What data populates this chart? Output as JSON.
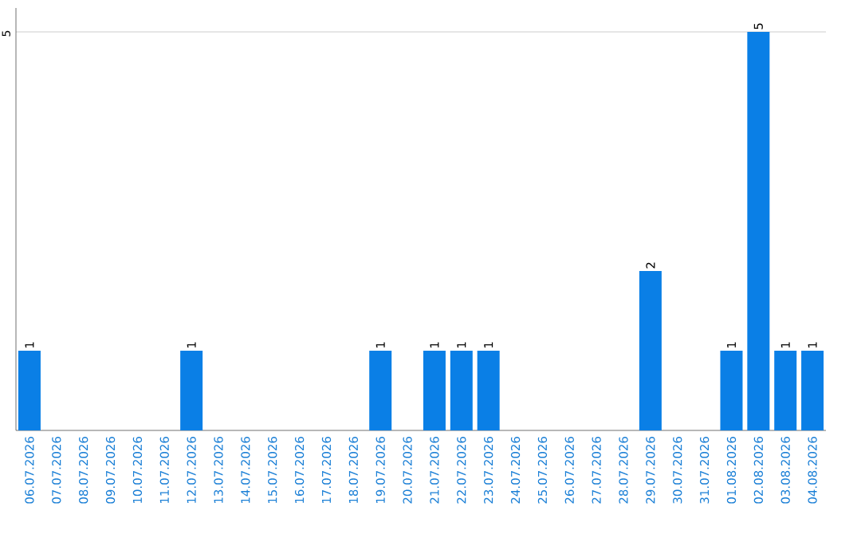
{
  "chart_data": {
    "type": "bar",
    "categories": [
      "06.07.2026",
      "07.07.2026",
      "08.07.2026",
      "09.07.2026",
      "10.07.2026",
      "11.07.2026",
      "12.07.2026",
      "13.07.2026",
      "14.07.2026",
      "15.07.2026",
      "16.07.2026",
      "17.07.2026",
      "18.07.2026",
      "19.07.2026",
      "20.07.2026",
      "21.07.2026",
      "22.07.2026",
      "23.07.2026",
      "24.07.2026",
      "25.07.2026",
      "26.07.2026",
      "27.07.2026",
      "28.07.2026",
      "29.07.2026",
      "30.07.2026",
      "31.07.2026",
      "01.08.2026",
      "02.08.2026",
      "03.08.2026",
      "04.08.2026"
    ],
    "values": [
      1,
      0,
      0,
      0,
      0,
      0,
      1,
      0,
      0,
      0,
      0,
      0,
      0,
      1,
      0,
      1,
      1,
      1,
      0,
      0,
      0,
      0,
      0,
      2,
      0,
      0,
      1,
      5,
      1,
      1
    ],
    "value_labels": [
      "1",
      null,
      null,
      null,
      null,
      null,
      "1",
      null,
      null,
      null,
      null,
      null,
      null,
      "1",
      null,
      "1",
      "1",
      "1",
      null,
      null,
      null,
      null,
      null,
      "2",
      null,
      null,
      "1",
      "5",
      "1",
      "1"
    ],
    "color": "#0a7fe6",
    "ylim": [
      0,
      5.3
    ],
    "yticks": [
      5
    ],
    "grid": "y"
  }
}
